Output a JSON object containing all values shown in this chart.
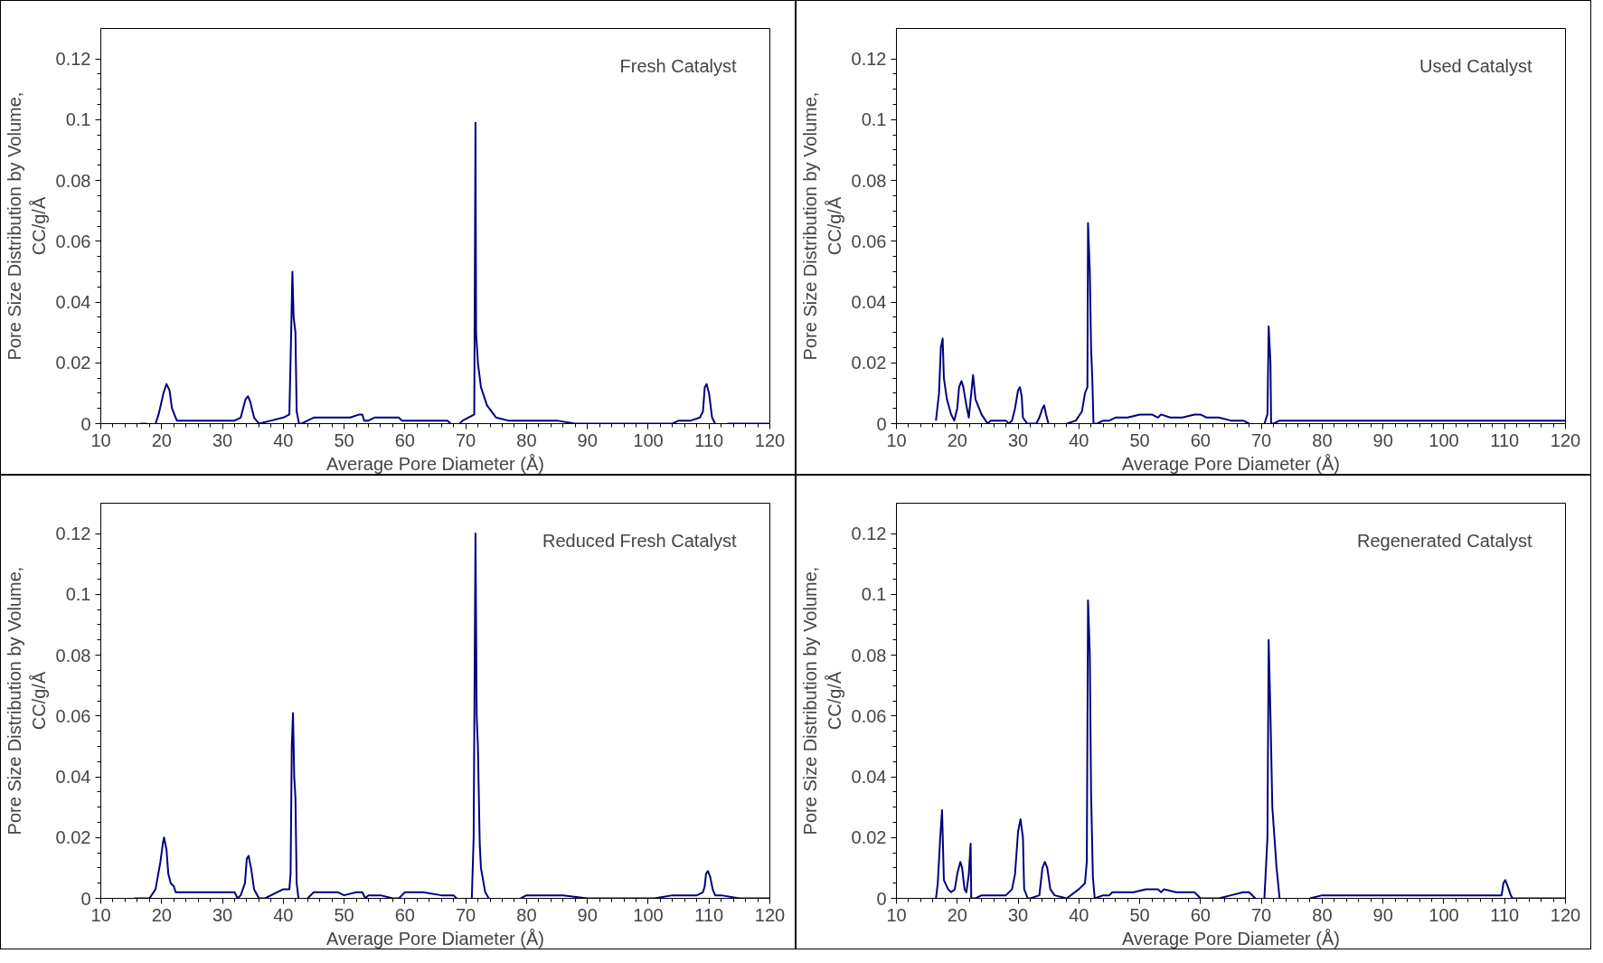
{
  "chart_data": [
    {
      "type": "line",
      "title": "Fresh Catalyst",
      "xlabel": "Average Pore Diameter (Å)",
      "ylabel": "Pore Size Distribution by Volume, CC/g/Å",
      "xlim": [
        10,
        120
      ],
      "ylim": [
        0,
        0.13
      ],
      "xticks": [
        10,
        20,
        30,
        40,
        50,
        60,
        70,
        80,
        90,
        100,
        110,
        120
      ],
      "yticks": [
        0,
        0.02,
        0.04,
        0.06,
        0.08,
        0.1,
        0.12
      ],
      "grid": false,
      "marker": "none",
      "line_style": "solid",
      "series": [
        {
          "color": "#000080",
          "x": [
            16.5,
            17.5,
            null,
            19,
            19.5,
            20.3,
            20.8,
            21.3,
            21.7,
            22.5,
            32,
            33,
            33.8,
            34.2,
            34.6,
            35.2,
            36,
            38,
            40,
            41,
            41.3,
            41.5,
            41.7,
            42,
            42.2,
            42.6,
            43,
            44,
            45,
            51,
            52.5,
            53,
            53.3,
            54,
            55,
            59,
            59.5,
            67,
            67.5,
            null,
            69,
            69.5,
            71.4,
            71.6,
            71.7,
            72,
            72.5,
            73.5,
            75,
            77,
            85,
            88,
            104,
            105,
            107,
            108.5,
            109,
            109.3,
            109.6,
            110,
            110.5,
            111,
            null,
            113,
            120
          ],
          "values": [
            0,
            0,
            null,
            0,
            0.003,
            0.01,
            0.013,
            0.011,
            0.005,
            0.001,
            0.001,
            0.002,
            0.008,
            0.009,
            0.007,
            0.002,
            0,
            0.001,
            0.002,
            0.003,
            0.03,
            0.05,
            0.035,
            0.03,
            0.004,
            0,
            0,
            0.001,
            0.002,
            0.002,
            0.003,
            0.003,
            0.001,
            0.001,
            0.002,
            0.002,
            0.001,
            0.001,
            0,
            null,
            0,
            0.001,
            0.003,
            0.099,
            0.03,
            0.02,
            0.012,
            0.006,
            0.002,
            0.001,
            0.001,
            0,
            0,
            0.001,
            0.001,
            0.002,
            0.004,
            0.012,
            0.013,
            0.01,
            0.002,
            0,
            null,
            0,
            0
          ]
        }
      ]
    },
    {
      "type": "line",
      "title": "Used Catalyst",
      "xlabel": "Average Pore Diameter (Å)",
      "ylabel": "Pore Size Distribution by Volume, CC/g/Å",
      "xlim": [
        10,
        120
      ],
      "ylim": [
        0,
        0.13
      ],
      "xticks": [
        10,
        20,
        30,
        40,
        50,
        60,
        70,
        80,
        90,
        100,
        110,
        120
      ],
      "yticks": [
        0,
        0.02,
        0.04,
        0.06,
        0.08,
        0.1,
        0.12
      ],
      "grid": false,
      "marker": "none",
      "line_style": "solid",
      "series": [
        {
          "color": "#000080",
          "x": [
            16.5,
            17,
            17.3,
            17.6,
            17.8,
            18.3,
            19,
            19.5,
            20,
            20.3,
            20.7,
            21,
            21.5,
            21.9,
            22.3,
            22.6,
            23,
            24,
            25,
            25.5,
            28,
            28.5,
            29,
            29.5,
            30,
            30.3,
            30.6,
            30.8,
            31.5,
            33,
            33.5,
            34,
            34.3,
            34.6,
            35,
            null,
            38,
            39.5,
            40.5,
            41,
            41.4,
            41.5,
            41.8,
            42,
            42.2,
            42.4,
            43,
            44,
            45,
            46,
            48,
            50,
            52,
            53,
            53.5,
            55,
            57,
            59,
            60,
            61,
            63,
            65,
            67,
            68,
            null,
            70.5,
            71,
            71.2,
            71.5,
            71.6,
            72,
            73,
            120
          ],
          "values": [
            0.001,
            0.01,
            0.025,
            0.028,
            0.015,
            0.008,
            0.003,
            0.001,
            0.005,
            0.012,
            0.014,
            0.012,
            0.006,
            0.002,
            0.01,
            0.016,
            0.008,
            0.003,
            0,
            0.001,
            0.001,
            0,
            0.001,
            0.005,
            0.011,
            0.012,
            0.009,
            0.002,
            0,
            0,
            0.002,
            0.005,
            0.006,
            0.003,
            0,
            null,
            0,
            0.001,
            0.004,
            0.01,
            0.012,
            0.066,
            0.05,
            0.025,
            0.015,
            0,
            0,
            0.001,
            0.001,
            0.002,
            0.002,
            0.003,
            0.003,
            0.002,
            0.003,
            0.002,
            0.002,
            0.003,
            0.003,
            0.002,
            0.002,
            0.001,
            0.001,
            0,
            null,
            0,
            0.003,
            0.032,
            0.02,
            0,
            0,
            0.001,
            0.001
          ]
        }
      ]
    },
    {
      "type": "line",
      "title": "Reduced Fresh Catalyst",
      "xlabel": "Average Pore Diameter (Å)",
      "ylabel": "Pore Size Distribution by Volume, CC/g/Å",
      "xlim": [
        10,
        120
      ],
      "ylim": [
        0,
        0.13
      ],
      "xticks": [
        10,
        20,
        30,
        40,
        50,
        60,
        70,
        80,
        90,
        100,
        110,
        120
      ],
      "yticks": [
        0,
        0.02,
        0.04,
        0.06,
        0.08,
        0.1,
        0.12
      ],
      "grid": false,
      "marker": "none",
      "line_style": "solid",
      "series": [
        {
          "color": "#000080",
          "x": [
            15.5,
            17,
            18,
            19,
            19.8,
            20.2,
            20.4,
            20.8,
            21.1,
            21.5,
            22,
            22.3,
            32,
            32.5,
            33,
            33.7,
            34,
            34.3,
            34.7,
            35.2,
            36,
            37,
            40,
            41,
            41.2,
            41.4,
            41.6,
            41.8,
            42,
            42.2,
            42.5,
            null,
            44,
            45,
            46,
            49,
            50,
            52,
            53,
            53.5,
            54,
            56,
            58,
            59,
            60,
            63,
            66,
            68,
            68.5,
            null,
            71,
            71.3,
            71.6,
            71.8,
            72,
            72.3,
            72.5,
            73.2,
            73.8,
            null,
            79,
            80,
            86,
            90,
            101,
            104,
            108,
            109,
            109.3,
            109.5,
            109.8,
            110.2,
            110.6,
            111,
            112,
            115,
            120
          ],
          "values": [
            0,
            0,
            0,
            0.003,
            0.012,
            0.018,
            0.02,
            0.016,
            0.008,
            0.005,
            0.004,
            0.002,
            0.002,
            0,
            0.001,
            0.005,
            0.013,
            0.014,
            0.01,
            0.003,
            0,
            0,
            0.003,
            0.003,
            0.008,
            0.05,
            0.061,
            0.04,
            0.033,
            0.005,
            0,
            null,
            0,
            0.002,
            0.002,
            0.002,
            0.001,
            0.002,
            0.002,
            0,
            0.001,
            0.001,
            0,
            0,
            0.002,
            0.002,
            0.001,
            0.001,
            0,
            null,
            0,
            0.02,
            0.12,
            0.06,
            0.05,
            0.018,
            0.01,
            0.002,
            0,
            null,
            0,
            0.001,
            0.001,
            0,
            0,
            0.001,
            0.001,
            0.002,
            0.004,
            0.008,
            0.009,
            0.007,
            0.003,
            0.001,
            0.001,
            0,
            0
          ]
        }
      ]
    },
    {
      "type": "line",
      "title": "Regenerated Catalyst",
      "xlabel": "Average Pore Diameter (Å)",
      "ylabel": "Pore Size Distribution by Volume, CC/g/Å",
      "xlim": [
        10,
        120
      ],
      "ylim": [
        0,
        0.13
      ],
      "xticks": [
        10,
        20,
        30,
        40,
        50,
        60,
        70,
        80,
        90,
        100,
        110,
        120
      ],
      "yticks": [
        0,
        0.02,
        0.04,
        0.06,
        0.08,
        0.1,
        0.12
      ],
      "grid": false,
      "marker": "none",
      "line_style": "solid",
      "series": [
        {
          "color": "#000080",
          "x": [
            16.5,
            16.8,
            17.2,
            17.5,
            17.8,
            18.5,
            19,
            19.6,
            20,
            20.5,
            20.8,
            21.2,
            21.5,
            21.9,
            22.2,
            22.3,
            23,
            24,
            28,
            29,
            29.5,
            30,
            30.4,
            30.8,
            31,
            31.6,
            32,
            33.5,
            34,
            34.4,
            34.8,
            35.3,
            36,
            38,
            40,
            41,
            41.3,
            41.5,
            41.8,
            42,
            42.3,
            42.6,
            44,
            45,
            45.5,
            49,
            51,
            53,
            53.5,
            54,
            56,
            58,
            59,
            60,
            63,
            65,
            67,
            68,
            69,
            null,
            70.5,
            71,
            71.2,
            71.5,
            71.8,
            72.5,
            73,
            null,
            78,
            80,
            109.5,
            109.8,
            110.1,
            110.5,
            111,
            111.3,
            120
          ],
          "values": [
            0,
            0.005,
            0.02,
            0.029,
            0.006,
            0.003,
            0.002,
            0.003,
            0.008,
            0.012,
            0.01,
            0.003,
            0.002,
            0.008,
            0.018,
            0,
            0,
            0.001,
            0.001,
            0.003,
            0.008,
            0.022,
            0.026,
            0.02,
            0.003,
            0,
            0,
            0.001,
            0.01,
            0.012,
            0.01,
            0.003,
            0.001,
            0,
            0.003,
            0.005,
            0.012,
            0.098,
            0.08,
            0.035,
            0.007,
            0,
            0.001,
            0.001,
            0.002,
            0.002,
            0.003,
            0.003,
            0.002,
            0.003,
            0.002,
            0.002,
            0.002,
            0,
            0,
            0.001,
            0.002,
            0.002,
            0,
            null,
            0,
            0.02,
            0.085,
            0.06,
            0.03,
            0.01,
            0,
            null,
            0,
            0.001,
            0.001,
            0.005,
            0.006,
            0.004,
            0.001,
            0,
            0
          ]
        }
      ]
    }
  ]
}
